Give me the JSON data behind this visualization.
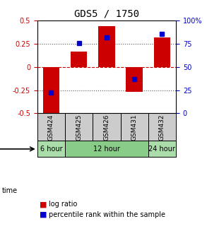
{
  "title": "GDS5 / 1750",
  "samples": [
    "GSM424",
    "GSM425",
    "GSM426",
    "GSM431",
    "GSM432"
  ],
  "log_ratio": [
    -0.54,
    0.17,
    0.44,
    -0.27,
    0.32
  ],
  "percentile_rank": [
    22,
    76,
    82,
    37,
    86
  ],
  "ylim": [
    -0.5,
    0.5
  ],
  "yticks_left": [
    -0.5,
    -0.25,
    0,
    0.25,
    0.5
  ],
  "yticks_right": [
    0,
    25,
    50,
    75,
    100
  ],
  "bar_color": "#cc0000",
  "dot_color": "#0000cc",
  "time_groups": [
    {
      "label": "6 hour",
      "start": 0,
      "end": 1,
      "color": "#aaddaa"
    },
    {
      "label": "12 hour",
      "start": 1,
      "end": 4,
      "color": "#88cc88"
    },
    {
      "label": "24 hour",
      "start": 4,
      "end": 5,
      "color": "#aaddaa"
    }
  ],
  "time_label": "time",
  "legend_bar": "log ratio",
  "legend_dot": "percentile rank within the sample",
  "hline_zero_color": "#cc0000",
  "hline_dotted_color": "#555555",
  "background_color": "#ffffff",
  "plot_bg_color": "#ffffff",
  "sample_box_color": "#cccccc"
}
